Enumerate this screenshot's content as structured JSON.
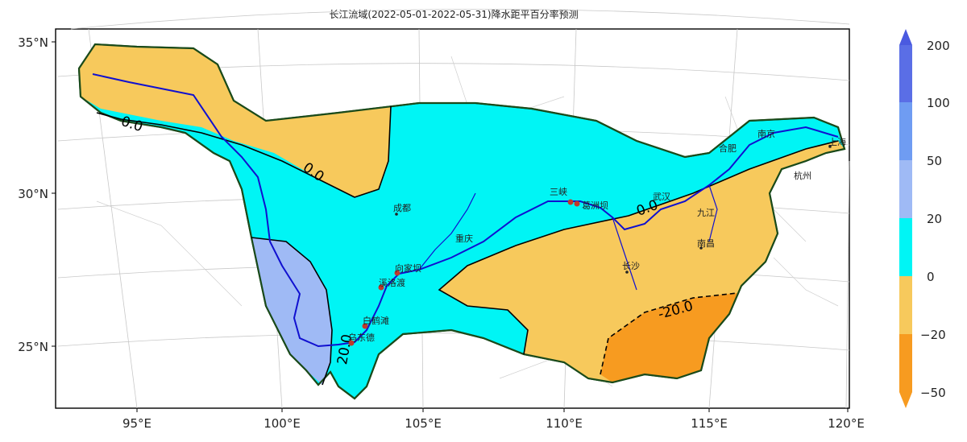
{
  "title": "长江流域(2022-05-01-2022-05-31)降水距平百分率预测",
  "axes": {
    "x_ticks": [
      "95°E",
      "100°E",
      "105°E",
      "110°E",
      "115°E",
      "120°E"
    ],
    "y_ticks": [
      "35°N",
      "30°N",
      "25°N"
    ]
  },
  "colorbar": {
    "ticks": [
      "200",
      "100",
      "50",
      "20",
      "0",
      "−20",
      "−50"
    ],
    "bins": [
      {
        "range": "100 to 200",
        "color": "#5a6ee6"
      },
      {
        "range": "50 to 100",
        "color": "#6f9cf2"
      },
      {
        "range": "20 to 50",
        "color": "#9fbaf5"
      },
      {
        "range": "0 to 20",
        "color": "#00f5f5"
      },
      {
        "range": "-20 to 0",
        "color": "#f7c95c"
      },
      {
        "range": "-50 to -20",
        "color": "#f79b20"
      }
    ]
  },
  "contour_labels": [
    "0.0",
    "0.0",
    "0.0",
    "20.0",
    "-20.0"
  ],
  "cities": [
    {
      "name": "成都",
      "kind": "label"
    },
    {
      "name": "三峡",
      "kind": "station"
    },
    {
      "name": "葛洲坝",
      "kind": "station"
    },
    {
      "name": "向家坝",
      "kind": "station"
    },
    {
      "name": "溪洛渡",
      "kind": "station"
    },
    {
      "name": "白鹤滩",
      "kind": "station"
    },
    {
      "name": "乌东德",
      "kind": "station"
    },
    {
      "name": "长沙",
      "kind": "label"
    },
    {
      "name": "南昌",
      "kind": "label"
    },
    {
      "name": "武汉",
      "kind": "label"
    },
    {
      "name": "合肥",
      "kind": "label"
    },
    {
      "name": "南京",
      "kind": "label"
    },
    {
      "name": "杭州",
      "kind": "label"
    },
    {
      "name": "上海",
      "kind": "label"
    },
    {
      "name": "九江",
      "kind": "label"
    },
    {
      "name": "重庆",
      "kind": "label"
    }
  ],
  "colors": {
    "river": "#1010d0",
    "basin_outline": "#1a4a1a",
    "contour": "#000000",
    "station_marker": "#c0392b"
  }
}
